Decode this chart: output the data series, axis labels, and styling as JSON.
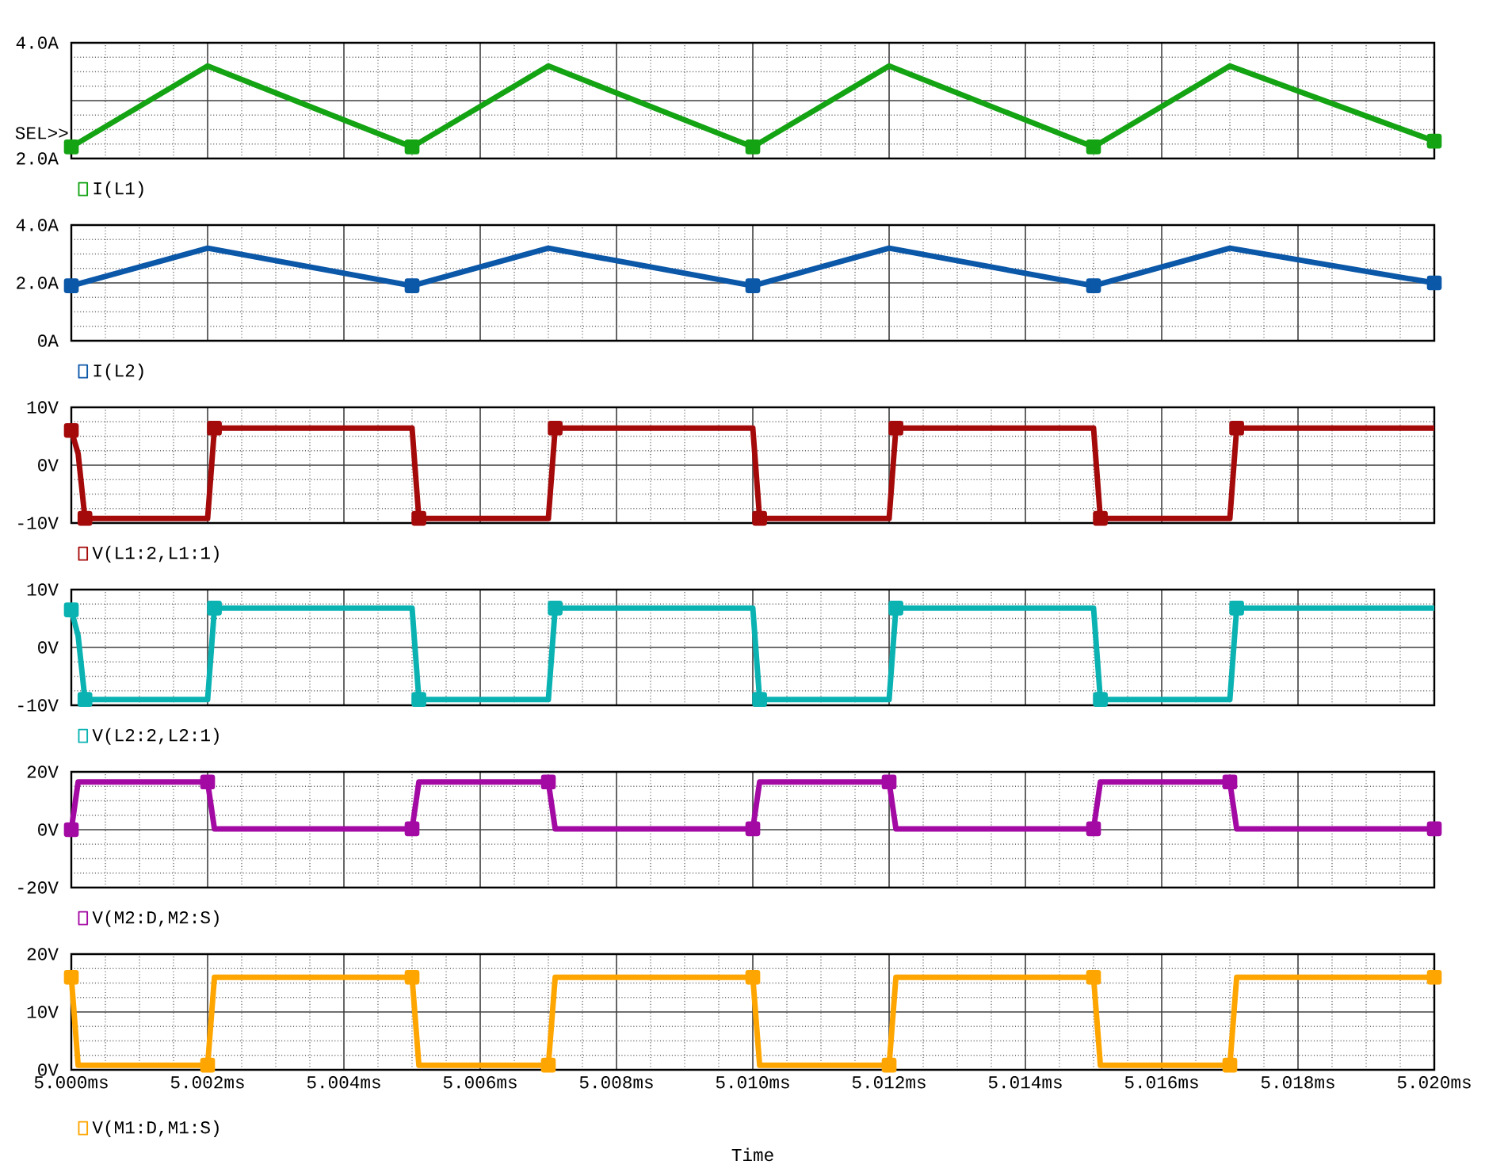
{
  "chart_data": [
    {
      "type": "line",
      "xlim": [
        5.0,
        5.02
      ],
      "xticks": [
        5.0,
        5.002,
        5.004,
        5.006,
        5.008,
        5.01,
        5.012,
        5.014,
        5.016,
        5.018,
        5.02
      ],
      "ylim": [
        2.0,
        4.0
      ],
      "yticks": [
        {
          "value": 2.0,
          "label": "2.0A"
        },
        {
          "value": 3.0,
          "label": null
        },
        {
          "value": 4.0,
          "label": "4.0A"
        }
      ],
      "tick_labels": "y",
      "grid": true,
      "legend": "bottom left",
      "marker": "square",
      "annotations": [
        "SEL>>"
      ],
      "x": [
        5.0,
        5.002,
        5.005,
        5.007,
        5.01,
        5.012,
        5.015,
        5.017,
        5.02
      ],
      "series": [
        {
          "name": "I(L1)",
          "color": "#13a313",
          "values": [
            2.2,
            3.6,
            2.2,
            3.6,
            2.2,
            3.6,
            2.2,
            3.6,
            2.3
          ]
        }
      ]
    },
    {
      "type": "line",
      "xlim": [
        5.0,
        5.02
      ],
      "xticks": [
        5.0,
        5.002,
        5.004,
        5.006,
        5.008,
        5.01,
        5.012,
        5.014,
        5.016,
        5.018,
        5.02
      ],
      "ylim": [
        0,
        4.0
      ],
      "yticks": [
        {
          "value": 0,
          "label": "0A"
        },
        {
          "value": 2.0,
          "label": "2.0A"
        },
        {
          "value": 4.0,
          "label": "4.0A"
        }
      ],
      "tick_labels": "y",
      "grid": true,
      "legend": "bottom left",
      "marker": "square",
      "x": [
        5.0,
        5.002,
        5.005,
        5.007,
        5.01,
        5.012,
        5.015,
        5.017,
        5.02
      ],
      "series": [
        {
          "name": "I(L2)",
          "color": "#0b57a8",
          "values": [
            1.9,
            3.2,
            1.9,
            3.2,
            1.9,
            3.2,
            1.9,
            3.2,
            2.0
          ]
        }
      ]
    },
    {
      "type": "line",
      "xlim": [
        5.0,
        5.02
      ],
      "xticks": [
        5.0,
        5.002,
        5.004,
        5.006,
        5.008,
        5.01,
        5.012,
        5.014,
        5.016,
        5.018,
        5.02
      ],
      "ylim": [
        -10,
        10
      ],
      "yticks": [
        {
          "value": -10,
          "label": "-10V"
        },
        {
          "value": 0,
          "label": "0V"
        },
        {
          "value": 10,
          "label": "10V"
        }
      ],
      "tick_labels": "y",
      "grid": true,
      "legend": "bottom left",
      "marker": "square",
      "x": [
        5.0,
        5.0001,
        5.0002,
        5.002,
        5.0021,
        5.005,
        5.0051,
        5.007,
        5.0071,
        5.01,
        5.0101,
        5.012,
        5.0121,
        5.015,
        5.0151,
        5.017,
        5.0171,
        5.02
      ],
      "series": [
        {
          "name": "V(L1:2,L1:1)",
          "color": "#a50a0a",
          "values": [
            6,
            2,
            -9.2,
            -9.2,
            6.4,
            6.4,
            -9.2,
            -9.2,
            6.4,
            6.4,
            -9.2,
            -9.2,
            6.4,
            6.4,
            -9.2,
            -9.2,
            6.4,
            6.4
          ]
        }
      ]
    },
    {
      "type": "line",
      "xlim": [
        5.0,
        5.02
      ],
      "xticks": [
        5.0,
        5.002,
        5.004,
        5.006,
        5.008,
        5.01,
        5.012,
        5.014,
        5.016,
        5.018,
        5.02
      ],
      "ylim": [
        -10,
        10
      ],
      "yticks": [
        {
          "value": -10,
          "label": "-10V"
        },
        {
          "value": 0,
          "label": "0V"
        },
        {
          "value": 10,
          "label": "10V"
        }
      ],
      "tick_labels": "y",
      "grid": true,
      "legend": "bottom left",
      "marker": "square",
      "x": [
        5.0,
        5.0001,
        5.0002,
        5.002,
        5.0021,
        5.005,
        5.0051,
        5.007,
        5.0071,
        5.01,
        5.0101,
        5.012,
        5.0121,
        5.015,
        5.0151,
        5.017,
        5.0171,
        5.02
      ],
      "series": [
        {
          "name": "V(L2:2,L2:1)",
          "color": "#0ab2b2",
          "values": [
            6.5,
            2,
            -9.0,
            -9.0,
            6.8,
            6.8,
            -9.0,
            -9.0,
            6.8,
            6.8,
            -9.0,
            -9.0,
            6.8,
            6.8,
            -9.0,
            -9.0,
            6.8,
            6.8
          ]
        }
      ]
    },
    {
      "type": "line",
      "xlim": [
        5.0,
        5.02
      ],
      "xticks": [
        5.0,
        5.002,
        5.004,
        5.006,
        5.008,
        5.01,
        5.012,
        5.014,
        5.016,
        5.018,
        5.02
      ],
      "ylim": [
        -20,
        20
      ],
      "yticks": [
        {
          "value": -20,
          "label": "-20V"
        },
        {
          "value": 0,
          "label": "0V"
        },
        {
          "value": 20,
          "label": "20V"
        }
      ],
      "tick_labels": "y",
      "grid": true,
      "legend": "bottom left",
      "marker": "square",
      "x": [
        5.0,
        5.0001,
        5.002,
        5.0021,
        5.005,
        5.0051,
        5.007,
        5.0071,
        5.01,
        5.0101,
        5.012,
        5.0121,
        5.015,
        5.0151,
        5.017,
        5.0171,
        5.02
      ],
      "series": [
        {
          "name": "V(M2:D,M2:S)",
          "color": "#a30aa3",
          "values": [
            0,
            16.5,
            16.5,
            0.3,
            0.3,
            16.5,
            16.5,
            0.3,
            0.3,
            16.5,
            16.5,
            0.3,
            0.3,
            16.5,
            16.5,
            0.3,
            0.3
          ]
        }
      ]
    },
    {
      "type": "line",
      "xlim": [
        5.0,
        5.02
      ],
      "xticks": [
        {
          "value": 5.0,
          "label": "5.000ms"
        },
        {
          "value": 5.002,
          "label": "5.002ms"
        },
        {
          "value": 5.004,
          "label": "5.004ms"
        },
        {
          "value": 5.006,
          "label": "5.006ms"
        },
        {
          "value": 5.008,
          "label": "5.008ms"
        },
        {
          "value": 5.01,
          "label": "5.010ms"
        },
        {
          "value": 5.012,
          "label": "5.012ms"
        },
        {
          "value": 5.014,
          "label": "5.014ms"
        },
        {
          "value": 5.016,
          "label": "5.016ms"
        },
        {
          "value": 5.018,
          "label": "5.018ms"
        },
        {
          "value": 5.02,
          "label": "5.020ms"
        }
      ],
      "ylim": [
        0,
        20
      ],
      "yticks": [
        {
          "value": 0,
          "label": "0V"
        },
        {
          "value": 10,
          "label": "10V"
        },
        {
          "value": 20,
          "label": "20V"
        }
      ],
      "grid": true,
      "legend": "bottom left",
      "marker": "square",
      "xlabel": "Time",
      "x": [
        5.0,
        5.0001,
        5.002,
        5.0021,
        5.005,
        5.0051,
        5.007,
        5.0071,
        5.01,
        5.0101,
        5.012,
        5.0121,
        5.015,
        5.0151,
        5.017,
        5.0171,
        5.02
      ],
      "series": [
        {
          "name": "V(M1:D,M1:S)",
          "color": "#ffa500",
          "values": [
            16,
            0.8,
            0.8,
            16,
            16,
            0.8,
            0.8,
            16,
            16,
            0.8,
            0.8,
            16,
            16,
            0.8,
            0.8,
            16,
            16
          ]
        }
      ]
    }
  ]
}
